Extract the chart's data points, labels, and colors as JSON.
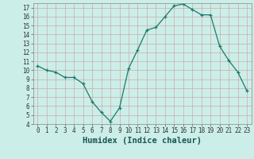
{
  "x": [
    0,
    1,
    2,
    3,
    4,
    5,
    6,
    7,
    8,
    9,
    10,
    11,
    12,
    13,
    14,
    15,
    16,
    17,
    18,
    19,
    20,
    21,
    22,
    23
  ],
  "y": [
    10.5,
    10.0,
    9.8,
    9.2,
    9.2,
    8.5,
    6.5,
    5.3,
    4.3,
    5.8,
    10.2,
    12.3,
    14.5,
    14.8,
    16.0,
    17.2,
    17.4,
    16.8,
    16.2,
    16.2,
    12.7,
    11.1,
    9.8,
    7.7
  ],
  "line_color": "#1a7a6e",
  "marker": "+",
  "marker_size": 3,
  "bg_color": "#cceee8",
  "grid_minor_color": "#bbddd8",
  "grid_major_color": "#aaccbb",
  "xlabel": "Humidex (Indice chaleur)",
  "ylabel": "",
  "xlim": [
    -0.5,
    23.5
  ],
  "ylim": [
    4,
    17.5
  ],
  "yticks": [
    4,
    5,
    6,
    7,
    8,
    9,
    10,
    11,
    12,
    13,
    14,
    15,
    16,
    17
  ],
  "xticks": [
    0,
    1,
    2,
    3,
    4,
    5,
    6,
    7,
    8,
    9,
    10,
    11,
    12,
    13,
    14,
    15,
    16,
    17,
    18,
    19,
    20,
    21,
    22,
    23
  ],
  "tick_fontsize": 5.5,
  "xlabel_fontsize": 7.5
}
